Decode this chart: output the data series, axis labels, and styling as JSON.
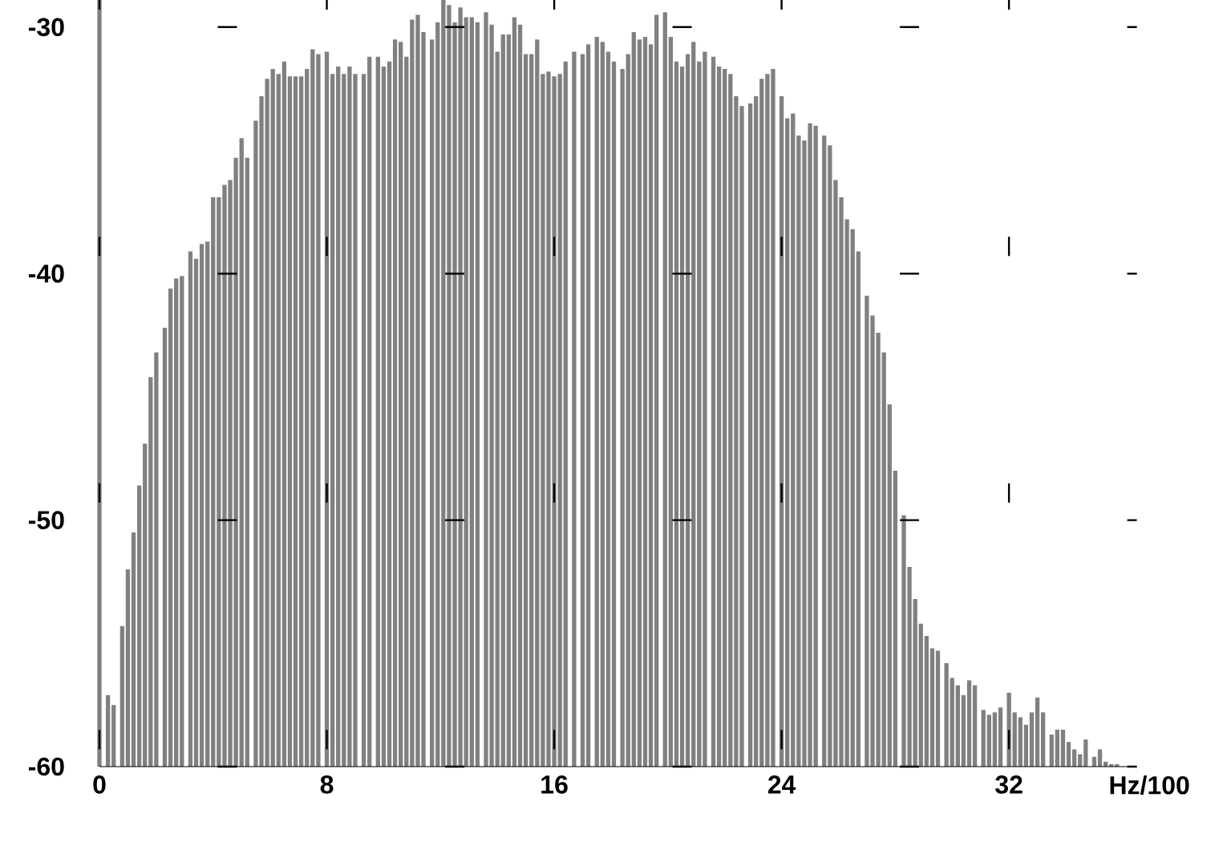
{
  "chart_data": {
    "type": "bar",
    "xlabel": "Hz/100",
    "color": "#808080",
    "grid": true,
    "xlim": [
      0,
      36.5
    ],
    "ylim": [
      -60,
      -28.9
    ],
    "xticks": [
      0,
      8,
      16,
      24,
      32
    ],
    "yticks": [
      -60,
      -50,
      -40,
      -30
    ],
    "x": [
      0,
      0.3,
      0.5,
      0.8,
      1.0,
      1.2,
      1.4,
      1.6,
      1.8,
      2.0,
      2.3,
      2.5,
      2.7,
      2.9,
      3.2,
      3.4,
      3.6,
      3.8,
      4.0,
      4.2,
      4.4,
      4.6,
      4.8,
      5.0,
      5.2,
      5.5,
      5.7,
      5.9,
      6.1,
      6.3,
      6.5,
      6.7,
      6.9,
      7.1,
      7.3,
      7.5,
      7.7,
      8.0,
      8.2,
      8.4,
      8.6,
      8.8,
      9.0,
      9.3,
      9.5,
      9.8,
      10.0,
      10.2,
      10.4,
      10.6,
      10.8,
      11.0,
      11.2,
      11.4,
      11.7,
      11.9,
      12.1,
      12.3,
      12.5,
      12.7,
      12.9,
      13.1,
      13.3,
      13.6,
      13.8,
      14.0,
      14.2,
      14.4,
      14.6,
      14.8,
      15.0,
      15.2,
      15.4,
      15.6,
      15.8,
      16.0,
      16.2,
      16.4,
      16.7,
      17.0,
      17.2,
      17.5,
      17.7,
      17.9,
      18.1,
      18.4,
      18.6,
      18.8,
      19.0,
      19.2,
      19.4,
      19.6,
      19.9,
      20.1,
      20.3,
      20.5,
      20.7,
      20.9,
      21.1,
      21.3,
      21.6,
      21.8,
      22.0,
      22.2,
      22.4,
      22.6,
      22.9,
      23.1,
      23.3,
      23.5,
      23.7,
      24.0,
      24.2,
      24.4,
      24.6,
      24.8,
      25.0,
      25.2,
      25.5,
      25.7,
      25.9,
      26.1,
      26.3,
      26.5,
      26.7,
      27.0,
      27.2,
      27.4,
      27.6,
      27.8,
      28.0,
      28.3,
      28.5,
      28.7,
      28.9,
      29.1,
      29.3,
      29.5,
      29.8,
      30.0,
      30.2,
      30.4,
      30.6,
      30.8,
      31.1,
      31.3,
      31.5,
      31.7,
      32.0,
      32.2,
      32.4,
      32.6,
      32.8,
      33.0,
      33.2,
      33.5,
      33.7,
      33.9,
      34.1,
      34.3,
      34.5,
      34.7,
      35.0,
      35.2,
      35.4,
      35.6,
      35.8
    ],
    "base": [
      -60,
      -60,
      -60,
      -60,
      -60,
      -60,
      -60,
      -60,
      -60,
      -60,
      -60,
      -60,
      -60,
      -60,
      -60,
      -60,
      -60,
      -60,
      -60,
      -60,
      -60,
      -60,
      -60,
      -60,
      -60,
      -60,
      -60,
      -60,
      -60,
      -60,
      -60,
      -60,
      -60,
      -60,
      -60,
      -60,
      -60,
      -60,
      -60,
      -60,
      -60,
      -60,
      -60,
      -60,
      -60,
      -60,
      -60,
      -60,
      -60,
      -60,
      -60,
      -60,
      -60,
      -60,
      -60,
      -60,
      -60,
      -60,
      -60,
      -60,
      -60,
      -60,
      -60,
      -60,
      -60,
      -60,
      -60,
      -60,
      -60,
      -60,
      -60,
      -60,
      -60,
      -60,
      -60,
      -60,
      -60,
      -60,
      -60,
      -60,
      -60,
      -60,
      -60,
      -60,
      -60,
      -60,
      -60,
      -60,
      -60,
      -60,
      -60,
      -60,
      -60,
      -60,
      -60,
      -60,
      -60,
      -60,
      -60,
      -60,
      -60,
      -60,
      -60,
      -60,
      -60,
      -60,
      -60,
      -60,
      -60,
      -60,
      -60,
      -60,
      -60,
      -60,
      -60,
      -60,
      -60,
      -60,
      -60,
      -60,
      -60,
      -60,
      -60,
      -60,
      -60,
      -60,
      -60,
      -60,
      -60,
      -60,
      -60,
      -60,
      -60,
      -60,
      -60,
      -60,
      -60,
      -60,
      -60,
      -60,
      -60,
      -60,
      -60,
      -60,
      -60,
      -60,
      -60,
      -60,
      -60,
      -60,
      -60,
      -60,
      -60,
      -60,
      -60,
      -60,
      -60,
      -60,
      -60,
      -60,
      -60,
      -60,
      -60,
      -60,
      -60,
      -60,
      -60
    ],
    "values": [
      31.1,
      2.9,
      2.5,
      5.7,
      8.0,
      9.5,
      11.4,
      13.1,
      15.8,
      16.8,
      17.8,
      19.4,
      19.8,
      19.9,
      20.9,
      20.6,
      21.2,
      21.3,
      23.1,
      23.1,
      23.6,
      23.8,
      24.7,
      25.5,
      24.7,
      26.2,
      27.2,
      27.9,
      28.3,
      28.1,
      28.6,
      28.0,
      28.0,
      28.0,
      28.3,
      29.1,
      28.9,
      29.0,
      28.1,
      28.4,
      28.1,
      28.4,
      28.1,
      28.1,
      28.8,
      28.8,
      28.4,
      28.6,
      29.5,
      29.4,
      28.8,
      30.3,
      30.5,
      29.8,
      29.5,
      30.2,
      31.1,
      30.9,
      30.2,
      30.8,
      30.4,
      30.4,
      30.2,
      30.6,
      30.1,
      29.0,
      29.7,
      29.7,
      30.4,
      30.1,
      28.9,
      28.9,
      29.5,
      28.1,
      28.2,
      28.0,
      28.1,
      28.6,
      29.0,
      28.9,
      29.3,
      29.6,
      29.4,
      29.0,
      28.6,
      28.3,
      28.9,
      29.8,
      29.5,
      29.6,
      29.3,
      30.5,
      30.6,
      29.6,
      28.6,
      28.4,
      28.9,
      29.4,
      28.6,
      29.0,
      28.8,
      28.4,
      28.3,
      28.1,
      27.2,
      26.8,
      26.9,
      27.2,
      27.9,
      28.1,
      28.3,
      27.2,
      26.3,
      26.5,
      25.6,
      25.4,
      26.1,
      26.0,
      25.6,
      25.2,
      23.8,
      23.1,
      22.2,
      21.8,
      20.9,
      19.1,
      18.3,
      17.6,
      16.8,
      14.7,
      12.0,
      10.2,
      8.1,
      6.8,
      5.8,
      5.3,
      4.8,
      4.7,
      4.2,
      3.6,
      3.3,
      2.9,
      3.5,
      3.3,
      2.3,
      2.1,
      2.2,
      2.4,
      3.0,
      2.2,
      2.0,
      1.7,
      2.2,
      2.8,
      2.2,
      1.3,
      1.5,
      1.5,
      1.0,
      0.7,
      0.5,
      1.1,
      0.4,
      0.7,
      0.2,
      0.1,
      0.1
    ]
  }
}
